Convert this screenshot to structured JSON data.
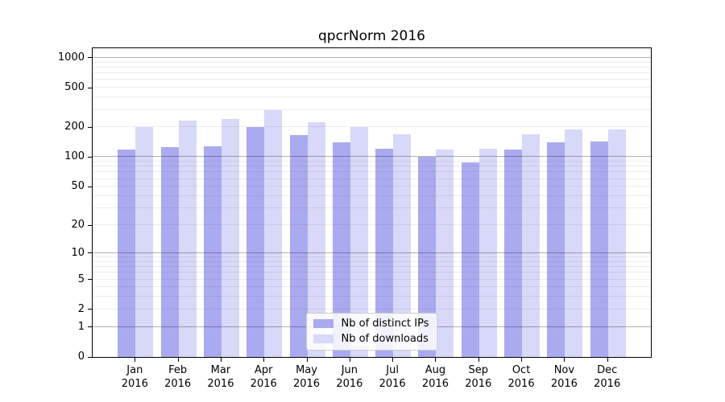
{
  "figure": {
    "title": "qpcrNorm 2016"
  },
  "chart_data": {
    "type": "bar",
    "title": "qpcrNorm 2016",
    "categories": [
      "Jan 2016",
      "Feb 2016",
      "Mar 2016",
      "Apr 2016",
      "May 2016",
      "Jun 2016",
      "Jul 2016",
      "Aug 2016",
      "Sep 2016",
      "Oct 2016",
      "Nov 2016",
      "Dec 2016"
    ],
    "series": [
      {
        "name": "Nb of distinct IPs",
        "color": "#aaaaf0",
        "values": [
          120,
          126,
          128,
          203,
          168,
          141,
          121,
          101,
          89,
          119,
          141,
          143
        ]
      },
      {
        "name": "Nb of downloads",
        "color": "#d8d8f8",
        "values": [
          200,
          232,
          242,
          296,
          225,
          202,
          169,
          120,
          122,
          170,
          190,
          192
        ]
      }
    ],
    "yscale": "log10(value+1)",
    "yticks": [
      1000,
      500,
      200,
      100,
      50,
      20,
      10,
      5,
      2,
      1,
      0
    ],
    "ylim": [
      0,
      1300
    ],
    "grid": true,
    "grid_over_bars": true,
    "legend_position": "lower center",
    "colors": {
      "major_gridline": "#b3b3b3",
      "minor_gridline": "#ededed",
      "axis_frame": "#000000",
      "background": "#ffffff"
    }
  }
}
